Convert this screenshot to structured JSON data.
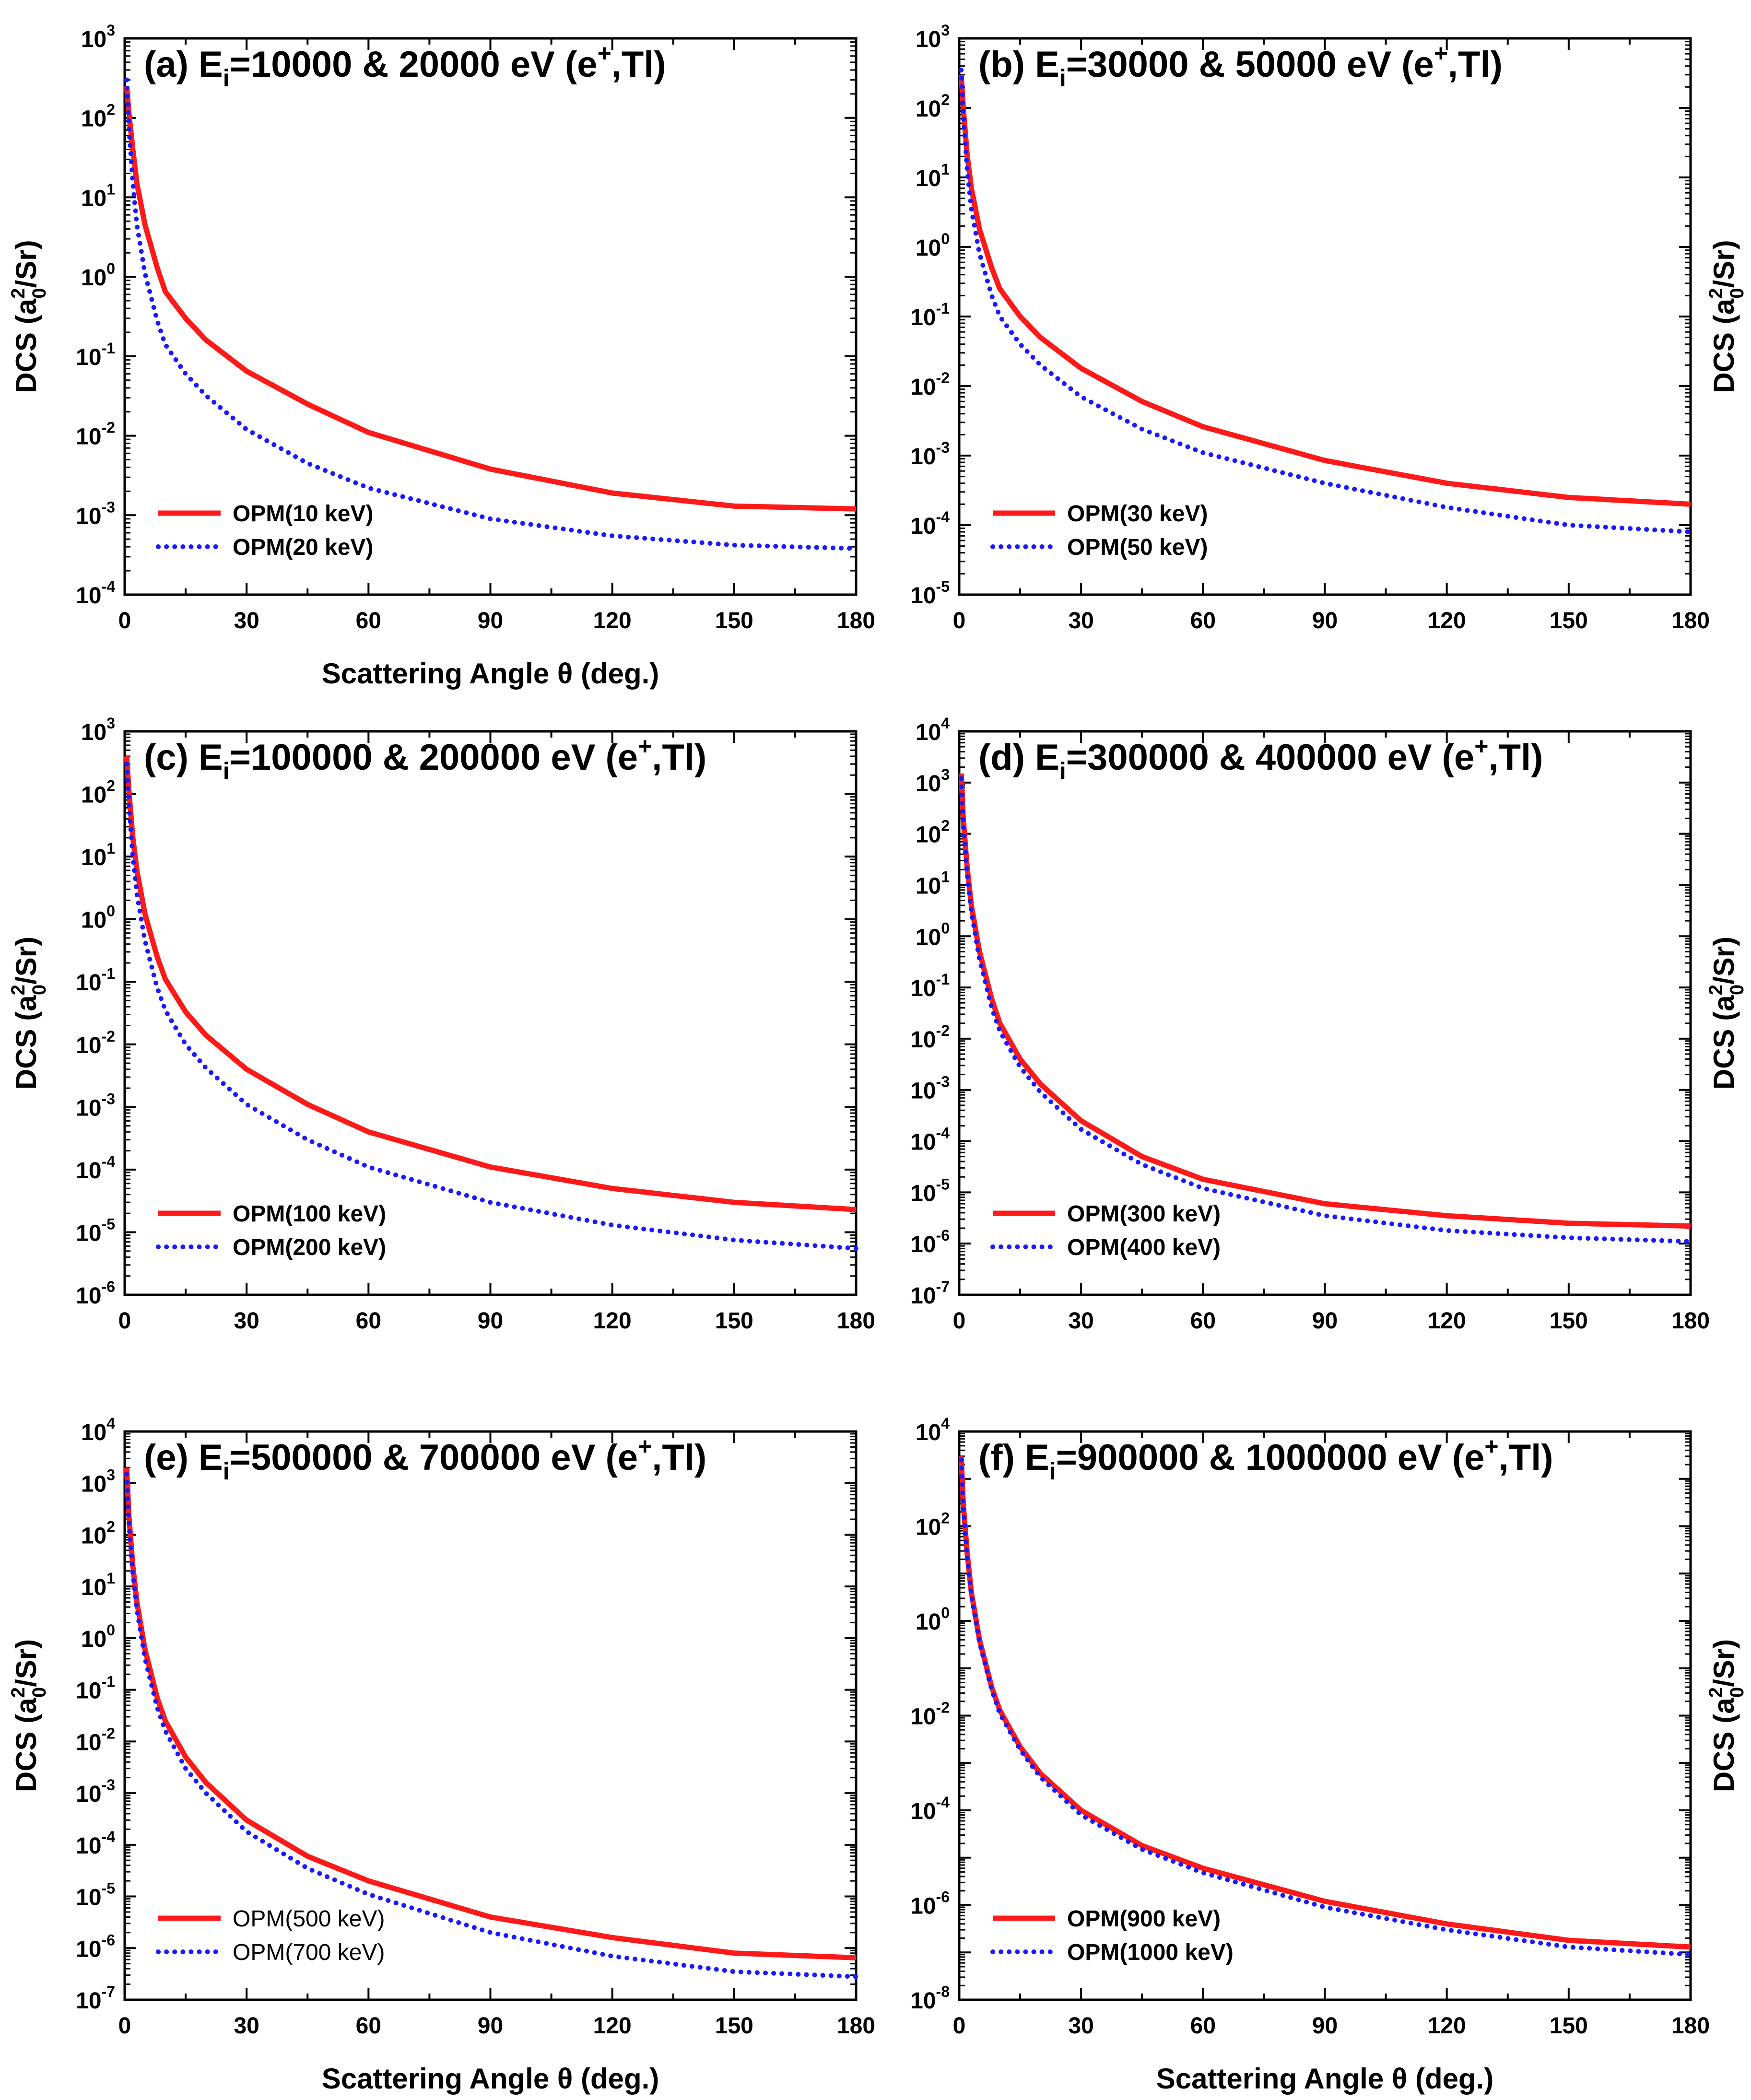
{
  "chart_data": [
    {
      "panel": "a",
      "type": "line",
      "title": {
        "prefix": "(a) E",
        "sub": "i",
        "main": "=10000 & 20000 eV (e",
        "sup": "+",
        "suffix": ",Tl)"
      },
      "xlabel": "Scattering Angle θ (deg.)",
      "ylabel": {
        "pre": "DCS (a",
        "sup": "2",
        "sub": "0",
        "post": "/Sr)"
      },
      "xlim": [
        0,
        180
      ],
      "xticks": [
        "0",
        "30",
        "60",
        "90",
        "120",
        "150",
        "180"
      ],
      "ylim_exp": [
        -4,
        3
      ],
      "yticks_exp": [
        -4,
        -3,
        -2,
        -1,
        0,
        1,
        2,
        3
      ],
      "ylabel_side": "left",
      "legend_weight": "bold",
      "series": [
        {
          "name": "OPM(10 keV)",
          "color": "#ff1a1a",
          "style": "solid",
          "x": [
            0.5,
            1,
            2,
            3,
            5,
            8,
            10,
            15,
            20,
            30,
            45,
            60,
            90,
            120,
            150,
            180
          ],
          "y": [
            250,
            120,
            40,
            15,
            4.5,
            1.3,
            0.65,
            0.3,
            0.16,
            0.065,
            0.025,
            0.011,
            0.0038,
            0.0019,
            0.0013,
            0.0012
          ]
        },
        {
          "name": "OPM(20 keV)",
          "color": "#1a1aff",
          "style": "dotted",
          "x": [
            0.5,
            1,
            2,
            3,
            5,
            8,
            10,
            15,
            20,
            30,
            45,
            60,
            90,
            120,
            150,
            180
          ],
          "y": [
            300,
            80,
            15,
            4.5,
            1.1,
            0.28,
            0.14,
            0.06,
            0.032,
            0.012,
            0.0045,
            0.0022,
            0.0009,
            0.00055,
            0.00042,
            0.00038
          ]
        }
      ]
    },
    {
      "panel": "b",
      "type": "line",
      "title": {
        "prefix": "(b) E",
        "sub": "i",
        "main": "=30000 & 50000 eV (e",
        "sup": "+",
        "suffix": ",Tl)"
      },
      "xlabel": "",
      "ylabel": {
        "pre": "DCS (a",
        "sup": "2",
        "sub": "0",
        "post": "/Sr)"
      },
      "xlim": [
        0,
        180
      ],
      "xticks": [
        "0",
        "30",
        "60",
        "90",
        "120",
        "150",
        "180"
      ],
      "ylim_exp": [
        -5,
        3
      ],
      "yticks_exp": [
        -5,
        -4,
        -3,
        -2,
        -1,
        0,
        1,
        2,
        3
      ],
      "ylabel_side": "right",
      "legend_weight": "bold",
      "series": [
        {
          "name": "OPM(30 keV)",
          "color": "#ff1a1a",
          "style": "solid",
          "x": [
            0.5,
            1,
            2,
            3,
            5,
            8,
            10,
            15,
            20,
            30,
            45,
            60,
            90,
            120,
            150,
            180
          ],
          "y": [
            300,
            100,
            20,
            7,
            1.8,
            0.5,
            0.25,
            0.1,
            0.05,
            0.018,
            0.006,
            0.0026,
            0.00085,
            0.0004,
            0.00025,
            0.0002
          ]
        },
        {
          "name": "OPM(50 keV)",
          "color": "#1a1aff",
          "style": "dotted",
          "x": [
            0.5,
            1,
            2,
            3,
            5,
            8,
            10,
            15,
            20,
            30,
            45,
            60,
            90,
            120,
            150,
            180
          ],
          "y": [
            350,
            80,
            12,
            3.5,
            0.8,
            0.2,
            0.1,
            0.04,
            0.02,
            0.007,
            0.0024,
            0.0011,
            0.0004,
            0.00018,
            0.0001,
            8e-05
          ]
        }
      ]
    },
    {
      "panel": "c",
      "type": "line",
      "title": {
        "prefix": "(c) E",
        "sub": "i",
        "main": "=100000 & 200000 eV (e",
        "sup": "+",
        "suffix": ",Tl)"
      },
      "xlabel": "",
      "ylabel": {
        "pre": "DCS (a",
        "sup": "2",
        "sub": "0",
        "post": "/Sr)"
      },
      "xlim": [
        0,
        180
      ],
      "xticks": [
        "0",
        "30",
        "60",
        "90",
        "120",
        "150",
        "180"
      ],
      "ylim_exp": [
        -6,
        3
      ],
      "yticks_exp": [
        -6,
        -5,
        -4,
        -3,
        -2,
        -1,
        0,
        1,
        2,
        3
      ],
      "ylabel_side": "left",
      "legend_weight": "bold",
      "series": [
        {
          "name": "OPM(100 keV)",
          "color": "#ff1a1a",
          "style": "solid",
          "x": [
            0.5,
            1,
            2,
            3,
            5,
            8,
            10,
            15,
            20,
            30,
            45,
            60,
            90,
            120,
            150,
            180
          ],
          "y": [
            400,
            120,
            20,
            6,
            1.2,
            0.25,
            0.11,
            0.033,
            0.014,
            0.004,
            0.0011,
            0.0004,
            0.00011,
            5e-05,
            3e-05,
            2.3e-05
          ]
        },
        {
          "name": "OPM(200 keV)",
          "color": "#1a1aff",
          "style": "dotted",
          "x": [
            0.5,
            1,
            2,
            3,
            5,
            8,
            10,
            15,
            20,
            30,
            45,
            60,
            90,
            120,
            150,
            180
          ],
          "y": [
            300,
            70,
            10,
            2.5,
            0.45,
            0.08,
            0.035,
            0.01,
            0.0042,
            0.0011,
            0.0003,
            0.00011,
            3e-05,
            1.3e-05,
            7.5e-06,
            5.5e-06
          ]
        }
      ]
    },
    {
      "panel": "d",
      "type": "line",
      "title": {
        "prefix": "(d) E",
        "sub": "i",
        "main": "=300000 & 400000 eV (e",
        "sup": "+",
        "suffix": ",Tl)"
      },
      "xlabel": "",
      "ylabel": {
        "pre": "DCS (a",
        "sup": "2",
        "sub": "0",
        "post": "/Sr)"
      },
      "xlim": [
        0,
        180
      ],
      "xticks": [
        "0",
        "30",
        "60",
        "90",
        "120",
        "150",
        "180"
      ],
      "ylim_exp": [
        -7,
        4
      ],
      "yticks_exp": [
        -7,
        -6,
        -5,
        -4,
        -3,
        -2,
        -1,
        0,
        1,
        2,
        3,
        4
      ],
      "ylabel_side": "right",
      "legend_weight": "bold",
      "series": [
        {
          "name": "OPM(300 keV)",
          "color": "#ff1a1a",
          "style": "solid",
          "x": [
            0.5,
            1,
            2,
            3,
            5,
            8,
            10,
            15,
            20,
            30,
            45,
            60,
            90,
            120,
            150,
            180
          ],
          "y": [
            1500,
            200,
            20,
            4,
            0.5,
            0.06,
            0.02,
            0.004,
            0.0013,
            0.00025,
            5e-05,
            1.8e-05,
            6e-06,
            3.5e-06,
            2.5e-06,
            2.2e-06
          ]
        },
        {
          "name": "OPM(400 keV)",
          "color": "#1a1aff",
          "style": "dotted",
          "x": [
            0.5,
            1,
            2,
            3,
            5,
            8,
            10,
            15,
            20,
            30,
            45,
            60,
            90,
            120,
            150,
            180
          ],
          "y": [
            1200,
            150,
            15,
            3,
            0.35,
            0.04,
            0.014,
            0.0028,
            0.0009,
            0.00017,
            3.5e-05,
            1.2e-05,
            3.5e-06,
            1.8e-06,
            1.3e-06,
            1.1e-06
          ]
        }
      ]
    },
    {
      "panel": "e",
      "type": "line",
      "title": {
        "prefix": "(e) E",
        "sub": "i",
        "main": "=500000 & 700000 eV (e",
        "sup": "+",
        "suffix": ",Tl)"
      },
      "xlabel": "Scattering Angle θ (deg.)",
      "ylabel": {
        "pre": "DCS (a",
        "sup": "2",
        "sub": "0",
        "post": "/Sr)"
      },
      "xlim": [
        0,
        180
      ],
      "xticks": [
        "0",
        "30",
        "60",
        "90",
        "120",
        "150",
        "180"
      ],
      "ylim_exp": [
        -7,
        4
      ],
      "yticks_exp": [
        -7,
        -6,
        -5,
        -4,
        -3,
        -2,
        -1,
        0,
        1,
        2,
        3,
        4
      ],
      "ylabel_side": "left",
      "legend_weight": "normal",
      "series": [
        {
          "name": "OPM(500 keV)",
          "color": "#ff1a1a",
          "style": "solid",
          "x": [
            0.5,
            1,
            2,
            3,
            5,
            8,
            10,
            15,
            20,
            30,
            45,
            60,
            90,
            120,
            150,
            180
          ],
          "y": [
            2000,
            250,
            25,
            5,
            0.6,
            0.07,
            0.025,
            0.005,
            0.0016,
            0.0003,
            6e-05,
            2e-05,
            4e-06,
            1.6e-06,
            8e-07,
            6.5e-07
          ]
        },
        {
          "name": "OPM(700 keV)",
          "color": "#1a1aff",
          "style": "dotted",
          "x": [
            0.5,
            1,
            2,
            3,
            5,
            8,
            10,
            15,
            20,
            30,
            45,
            60,
            90,
            120,
            150,
            180
          ],
          "y": [
            1500,
            180,
            18,
            3.5,
            0.4,
            0.045,
            0.016,
            0.003,
            0.001,
            0.00018,
            3.5e-05,
            1.1e-05,
            2e-06,
            7e-07,
            3.5e-07,
            2.8e-07
          ]
        }
      ]
    },
    {
      "panel": "f",
      "type": "line",
      "title": {
        "prefix": "(f) E",
        "sub": "i",
        "main": "=900000 & 1000000 eV (e",
        "sup": "+",
        "suffix": ",Tl)"
      },
      "xlabel": "Scattering Angle θ (deg.)",
      "ylabel": {
        "pre": "DCS (a",
        "sup": "2",
        "sub": "0",
        "post": "/Sr)"
      },
      "xlim": [
        0,
        180
      ],
      "xticks": [
        "0",
        "30",
        "60",
        "90",
        "120",
        "150",
        "180"
      ],
      "ylim_exp": [
        -8,
        4
      ],
      "yticks_exp": [
        -8,
        -6,
        -4,
        -2,
        0,
        2,
        4
      ],
      "ylabel_side": "right",
      "legend_weight": "bold",
      "series": [
        {
          "name": "OPM(900 keV)",
          "color": "#ff1a1a",
          "style": "solid",
          "x": [
            0.5,
            1,
            2,
            3,
            5,
            8,
            10,
            15,
            20,
            30,
            45,
            60,
            90,
            120,
            150,
            180
          ],
          "y": [
            3000,
            300,
            25,
            4,
            0.4,
            0.04,
            0.013,
            0.0022,
            0.0006,
            0.0001,
            1.8e-05,
            6e-06,
            1.2e-06,
            4e-07,
            1.8e-07,
            1.3e-07
          ]
        },
        {
          "name": "OPM(1000 keV)",
          "color": "#1a1aff",
          "style": "dotted",
          "x": [
            0.5,
            1,
            2,
            3,
            5,
            8,
            10,
            15,
            20,
            30,
            45,
            60,
            90,
            120,
            150,
            180
          ],
          "y": [
            2500,
            250,
            20,
            3.5,
            0.35,
            0.035,
            0.011,
            0.0019,
            0.0005,
            8e-05,
            1.5e-05,
            4.8e-06,
            9e-07,
            3e-07,
            1.3e-07,
            9e-08
          ]
        }
      ]
    }
  ]
}
